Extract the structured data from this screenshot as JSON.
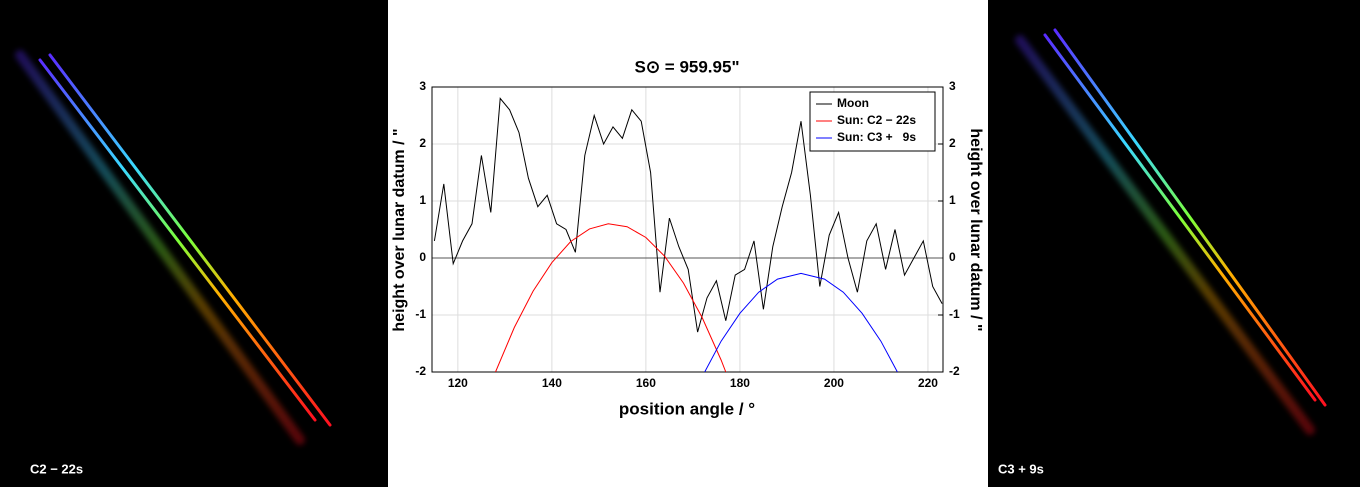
{
  "chart_data": {
    "type": "line",
    "title": "S⊙ = 959.95\"",
    "x_label": "position angle / °",
    "y_label": "height over lunar datum / \"",
    "y2_label": "height over lunar datum / \"",
    "xlim": [
      114.5,
      223.2
    ],
    "xticks": [
      120,
      140,
      160,
      180,
      200,
      220
    ],
    "ylim": [
      -2,
      3
    ],
    "yticks": [
      -2,
      -1,
      0,
      1,
      2,
      3
    ],
    "y2lim": [
      -2,
      3
    ],
    "y2ticks": [
      -2,
      -1,
      0,
      1,
      2,
      3
    ],
    "grid": true,
    "legend": "top-right",
    "series": [
      {
        "name": "Moon",
        "color": "#000000",
        "x": [
          115,
          117,
          119,
          121,
          123,
          125,
          127,
          129,
          131,
          133,
          135,
          137,
          139,
          141,
          143,
          145,
          147,
          149,
          151,
          153,
          155,
          157,
          159,
          161,
          163,
          165,
          167,
          169,
          171,
          173,
          175,
          177,
          179,
          181,
          183,
          185,
          187,
          189,
          191,
          193,
          195,
          197,
          199,
          201,
          203,
          205,
          207,
          209,
          211,
          213,
          215,
          217,
          219,
          221,
          223
        ],
        "values": [
          0.3,
          1.3,
          -0.1,
          0.3,
          0.6,
          1.8,
          0.8,
          2.8,
          2.6,
          2.2,
          1.4,
          0.9,
          1.1,
          0.6,
          0.5,
          0.1,
          1.8,
          2.5,
          2.0,
          2.3,
          2.1,
          2.6,
          2.4,
          1.5,
          -0.6,
          0.7,
          0.2,
          -0.2,
          -1.3,
          -0.7,
          -0.4,
          -1.1,
          -0.3,
          -0.2,
          0.3,
          -0.9,
          0.2,
          0.9,
          1.5,
          2.4,
          1.1,
          -0.5,
          0.4,
          0.8,
          0.0,
          -0.6,
          0.3,
          0.6,
          -0.2,
          0.5,
          -0.3,
          0.0,
          0.3,
          -0.5,
          -0.8
        ]
      },
      {
        "name": "Sun: C2 − 22s",
        "color": "#ff0000",
        "x": [
          128,
          132,
          136,
          140,
          144,
          148,
          152,
          156,
          160,
          164,
          168,
          172,
          176,
          177
        ],
        "values": [
          -2.0,
          -1.22,
          -0.58,
          -0.08,
          0.29,
          0.51,
          0.6,
          0.55,
          0.36,
          0.03,
          -0.44,
          -1.05,
          -1.79,
          -2.0
        ]
      },
      {
        "name": "Sun: C3 +   9s",
        "color": "#0000ff",
        "x": [
          172.5,
          176,
          180,
          184,
          188,
          193,
          198,
          202,
          206,
          210,
          213.5
        ],
        "values": [
          -2.0,
          -1.46,
          -0.97,
          -0.6,
          -0.37,
          -0.27,
          -0.37,
          -0.6,
          -0.97,
          -1.46,
          -2.0
        ]
      }
    ]
  },
  "left_image": {
    "label": "C2 − 22s"
  },
  "right_image": {
    "label": "C3 + 9s"
  }
}
